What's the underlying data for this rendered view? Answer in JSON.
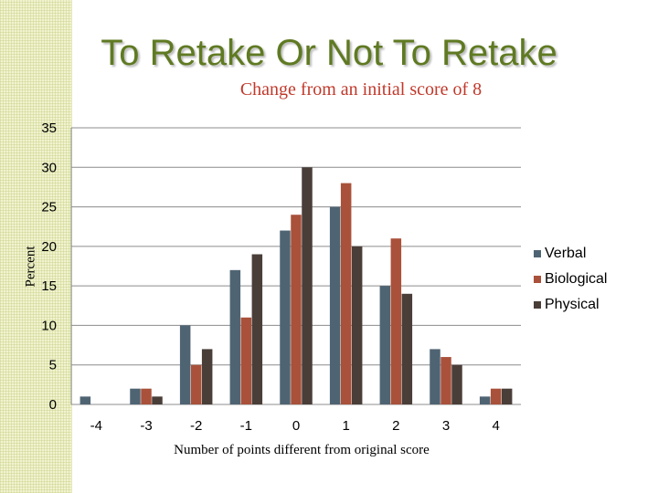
{
  "slide": {
    "title": "To Retake Or Not To Retake"
  },
  "chart_data": {
    "type": "bar",
    "title": "Change from an initial score of 8",
    "xlabel": "Number of points different from original score",
    "ylabel": "Percent",
    "categories": [
      "-4",
      "-3",
      "-2",
      "-1",
      "0",
      "1",
      "2",
      "3",
      "4"
    ],
    "series": [
      {
        "name": "Verbal",
        "color": "#4f6473",
        "values": [
          1,
          2,
          10,
          17,
          22,
          25,
          15,
          7,
          1
        ]
      },
      {
        "name": "Biological",
        "color": "#a9513a",
        "values": [
          0,
          2,
          5,
          11,
          24,
          28,
          21,
          6,
          2
        ]
      },
      {
        "name": "Physical",
        "color": "#4a3e38",
        "values": [
          0,
          1,
          7,
          19,
          30,
          20,
          14,
          5,
          2
        ]
      }
    ],
    "ylim": [
      0,
      35
    ],
    "yticks": [
      0,
      5,
      10,
      15,
      20,
      25,
      30,
      35
    ],
    "grid": true,
    "legend_position": "right"
  }
}
